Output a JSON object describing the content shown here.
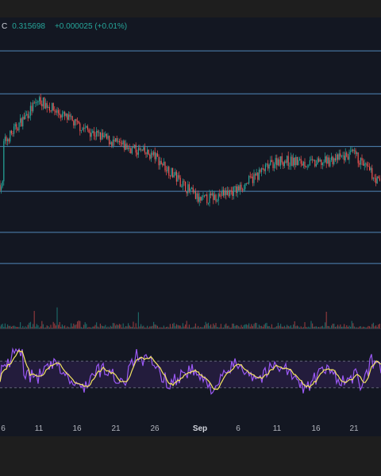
{
  "legend": {
    "close_prefix": "C",
    "close_value": "0.315698",
    "change": "+0.000025 (+0.01%)"
  },
  "colors": {
    "background": "#131722",
    "up": "#26a69a",
    "down": "#ef5350",
    "hline": "#5b9bd5",
    "rsi": "#9b59f5",
    "rsi_ma": "#f5e663",
    "rsi_band": "#2a1f45"
  },
  "chart_data": [
    {
      "type": "candlestick",
      "x_tick_labels": [
        "6",
        "11",
        "16",
        "21",
        "26",
        "Sep",
        "6",
        "11",
        "16",
        "21"
      ],
      "horizontal_levels": [
        0.35,
        0.339,
        0.3255,
        0.314,
        0.3035,
        0.2955
      ],
      "price_path_keypoints": [
        {
          "tick": "6",
          "close": 0.3262
        },
        {
          "tick": "11",
          "close": 0.3375
        },
        {
          "tick": "16",
          "close": 0.331
        },
        {
          "tick": "21",
          "close": 0.3262
        },
        {
          "tick": "26",
          "close": 0.323
        },
        {
          "tick": "Sep",
          "close": 0.3115
        },
        {
          "tick": "6",
          "close": 0.3145
        },
        {
          "tick": "11",
          "close": 0.322
        },
        {
          "tick": "16",
          "close": 0.321
        },
        {
          "tick": "21",
          "close": 0.3235
        },
        {
          "tick": "latest",
          "close": 0.3157
        }
      ]
    },
    {
      "type": "bar",
      "name": "volume",
      "note_free": true
    },
    {
      "type": "line",
      "name": "rsi",
      "band": [
        30,
        70
      ]
    }
  ]
}
